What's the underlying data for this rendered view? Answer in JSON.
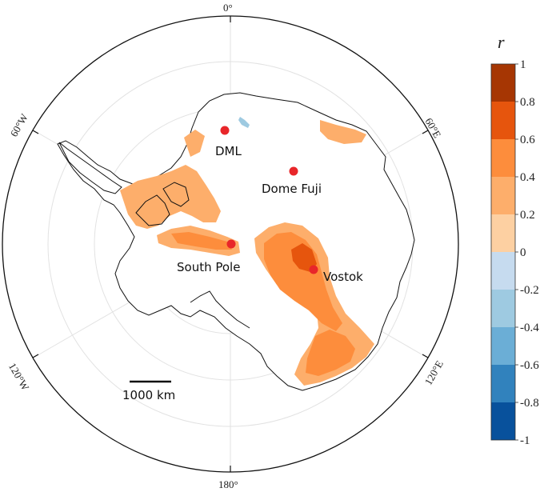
{
  "meridians": {
    "top": "0°",
    "bottom": "180°",
    "left_upper": "60°W",
    "right_upper": "60°E",
    "left_lower": "120°W",
    "right_lower": "120°E"
  },
  "stations": [
    {
      "name": "DML",
      "color": "#e8262a"
    },
    {
      "name": "Dome Fuji",
      "color": "#e8262a"
    },
    {
      "name": "South Pole",
      "color": "#e8262a"
    },
    {
      "name": "Vostok",
      "color": "#e8262a"
    }
  ],
  "scale_bar": {
    "label": "1000 km"
  },
  "colorbar": {
    "title": "r",
    "ticks": [
      "1",
      "0.8",
      "0.6",
      "0.4",
      "0.2",
      "0",
      "-0.2",
      "-0.4",
      "-0.6",
      "-0.8",
      "-1"
    ],
    "bins": [
      {
        "range": [
          0.8,
          1.0
        ],
        "color": "#a63603"
      },
      {
        "range": [
          0.6,
          0.8
        ],
        "color": "#e6550d"
      },
      {
        "range": [
          0.4,
          0.6
        ],
        "color": "#fd8d3c"
      },
      {
        "range": [
          0.2,
          0.4
        ],
        "color": "#fdae6b"
      },
      {
        "range": [
          0.0,
          0.2
        ],
        "color": "#fdd0a2"
      },
      {
        "range": [
          -0.2,
          0.0
        ],
        "color": "#c6dbef"
      },
      {
        "range": [
          -0.4,
          -0.2
        ],
        "color": "#9ecae1"
      },
      {
        "range": [
          -0.6,
          -0.4
        ],
        "color": "#6baed6"
      },
      {
        "range": [
          -0.8,
          -0.6
        ],
        "color": "#3182bd"
      },
      {
        "range": [
          -1.0,
          -0.8
        ],
        "color": "#08519c"
      }
    ]
  }
}
